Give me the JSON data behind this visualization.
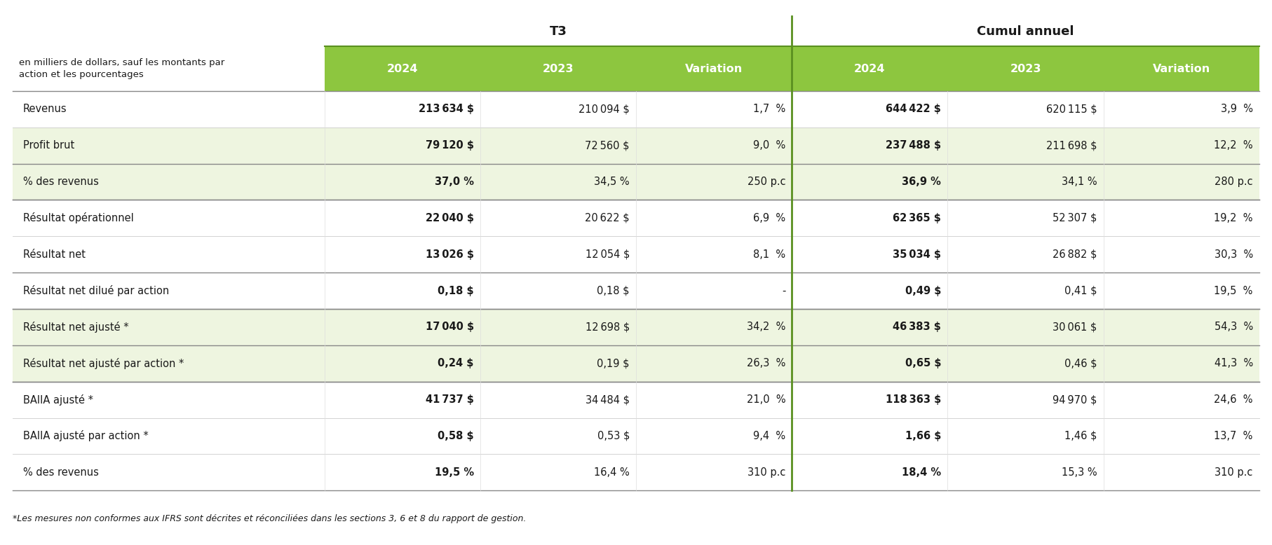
{
  "title_top": "T3",
  "title_top2": "Cumul annuel",
  "header_label": "en milliers de dollars, sauf les montants par\naction et les pourcentages",
  "col_headers": [
    "2024",
    "2023",
    "Variation",
    "2024",
    "2023",
    "Variation"
  ],
  "header_bg": "#8DC63F",
  "header_text": "#FFFFFF",
  "alt_row_bg": "#EEF5E0",
  "normal_row_bg": "#FFFFFF",
  "rows": [
    {
      "label": "Revenus",
      "vals": [
        "213 634 $",
        "210 094 $",
        "1,7  %",
        "644 422 $",
        "620 115 $",
        "3,9  %"
      ],
      "bold_cols": [
        0,
        3
      ],
      "alt": false
    },
    {
      "label": "Profit brut",
      "vals": [
        "79 120 $",
        "72 560 $",
        "9,0  %",
        "237 488 $",
        "211 698 $",
        "12,2  %"
      ],
      "bold_cols": [
        0,
        3
      ],
      "alt": true
    },
    {
      "label": "% des revenus",
      "vals": [
        "37,0 %",
        "34,5 %",
        "250 p.c",
        "36,9 %",
        "34,1 %",
        "280 p.c"
      ],
      "bold_cols": [
        0,
        3
      ],
      "alt": true
    },
    {
      "label": "Résultat opérationnel",
      "vals": [
        "22 040 $",
        "20 622 $",
        "6,9  %",
        "62 365 $",
        "52 307 $",
        "19,2  %"
      ],
      "bold_cols": [
        0,
        3
      ],
      "alt": false
    },
    {
      "label": "Résultat net",
      "vals": [
        "13 026 $",
        "12 054 $",
        "8,1  %",
        "35 034 $",
        "26 882 $",
        "30,3  %"
      ],
      "bold_cols": [
        0,
        3
      ],
      "alt": false
    },
    {
      "label": "Résultat net dilué par action",
      "vals": [
        "0,18 $",
        "0,18 $",
        "-",
        "0,49 $",
        "0,41 $",
        "19,5  %"
      ],
      "bold_cols": [
        0,
        3
      ],
      "alt": false
    },
    {
      "label": "Résultat net ajusté *",
      "vals": [
        "17 040 $",
        "12 698 $",
        "34,2  %",
        "46 383 $",
        "30 061 $",
        "54,3  %"
      ],
      "bold_cols": [
        0,
        3
      ],
      "alt": true
    },
    {
      "label": "Résultat net ajusté par action *",
      "vals": [
        "0,24 $",
        "0,19 $",
        "26,3  %",
        "0,65 $",
        "0,46 $",
        "41,3  %"
      ],
      "bold_cols": [
        0,
        3
      ],
      "alt": true
    },
    {
      "label": "BAIIA ajusté *",
      "vals": [
        "41 737 $",
        "34 484 $",
        "21,0  %",
        "118 363 $",
        "94 970 $",
        "24,6  %"
      ],
      "bold_cols": [
        0,
        3
      ],
      "alt": false
    },
    {
      "label": "BAIIA ajusté par action *",
      "vals": [
        "0,58 $",
        "0,53 $",
        "9,4  %",
        "1,66 $",
        "1,46 $",
        "13,7  %"
      ],
      "bold_cols": [
        0,
        3
      ],
      "alt": false
    },
    {
      "label": "% des revenus",
      "vals": [
        "19,5 %",
        "16,4 %",
        "310 p.c",
        "18,4 %",
        "15,3 %",
        "310 p.c"
      ],
      "bold_cols": [
        0,
        3
      ],
      "alt": false
    }
  ],
  "footnote": "*Les mesures non conformes aux IFRS sont décrites et réconciliées dans les sections 3, 6 et 8 du rapport de gestion.",
  "divider_after": [
    2,
    5,
    7
  ],
  "green_divider_col": 3,
  "figsize": [
    18.14,
    7.78
  ],
  "dpi": 100
}
